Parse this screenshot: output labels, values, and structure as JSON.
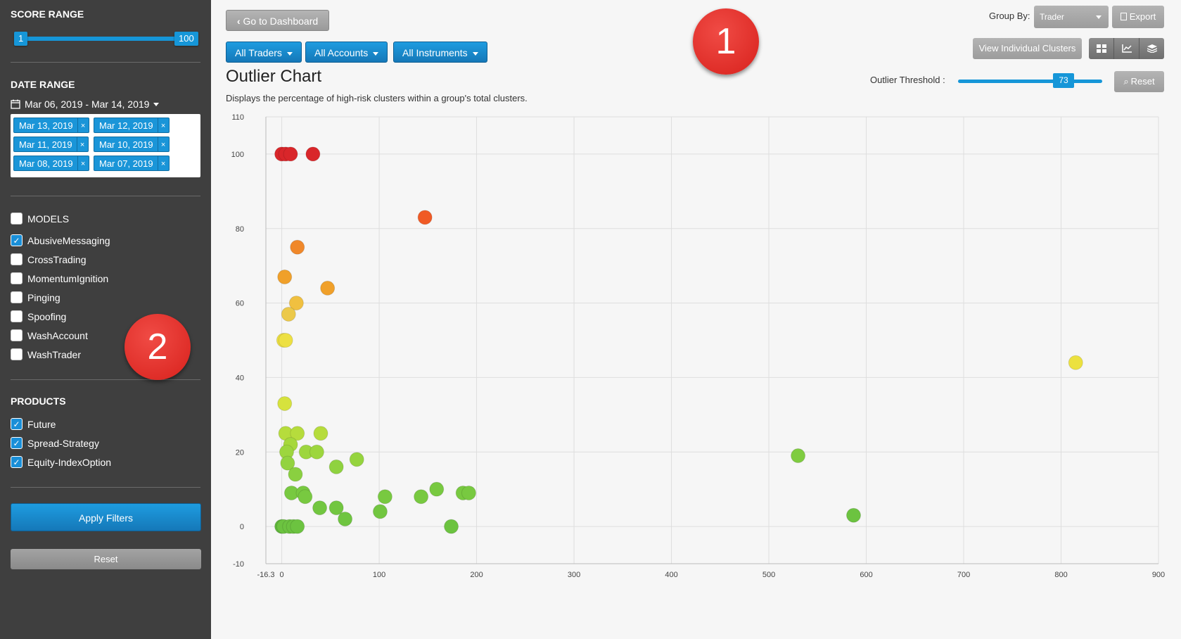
{
  "sidebar": {
    "score_range": {
      "title": "SCORE RANGE",
      "min_label": "1",
      "max_label": "100"
    },
    "date_range": {
      "title": "DATE RANGE",
      "picker_label": "Mar 06, 2019 - Mar 14, 2019",
      "tags": [
        "Mar 13, 2019",
        "Mar 12, 2019",
        "Mar 11, 2019",
        "Mar 10, 2019",
        "Mar 08, 2019",
        "Mar 07, 2019"
      ],
      "remove_glyph": "×"
    },
    "models": {
      "header": "MODELS",
      "items": [
        {
          "label": "AbusiveMessaging",
          "checked": true
        },
        {
          "label": "CrossTrading",
          "checked": false
        },
        {
          "label": "MomentumIgnition",
          "checked": false
        },
        {
          "label": "Pinging",
          "checked": false
        },
        {
          "label": "Spoofing",
          "checked": false
        },
        {
          "label": "WashAccount",
          "checked": false
        },
        {
          "label": "WashTrader",
          "checked": false
        }
      ]
    },
    "products": {
      "title": "PRODUCTS",
      "items": [
        {
          "label": "Future",
          "checked": true
        },
        {
          "label": "Spread-Strategy",
          "checked": true
        },
        {
          "label": "Equity-IndexOption",
          "checked": true
        }
      ]
    },
    "apply_label": "Apply Filters",
    "reset_label": "Reset"
  },
  "badges": {
    "one": "1",
    "two": "2"
  },
  "toolbar": {
    "dashboard_label": "Go to Dashboard",
    "filters": [
      "All Traders",
      "All Accounts",
      "All Instruments"
    ],
    "group_by_label": "Group By:",
    "group_by_value": "Trader",
    "export_label": "Export",
    "clusters_label": "View Individual Clusters",
    "threshold_label": "Outlier Threshold :",
    "threshold_value": "73",
    "threshold_reset_label": "Reset"
  },
  "page": {
    "title": "Outlier Chart",
    "subtitle": "Displays the percentage of high-risk clusters within a group's total clusters."
  },
  "colors": {
    "accent": "#1696d8",
    "sidebar_bg": "#3f3f3f"
  },
  "chart_data": {
    "type": "scatter",
    "title": "",
    "xlabel": "",
    "ylabel": "",
    "xlim": [
      -16.3,
      900
    ],
    "ylim": [
      -10,
      110
    ],
    "x_ticks": [
      -16.3,
      0,
      100,
      200,
      300,
      400,
      500,
      600,
      700,
      800,
      900
    ],
    "x_tick_labels": [
      "-16.3",
      "0",
      "100",
      "200",
      "300",
      "400",
      "500",
      "600",
      "700",
      "800",
      "900"
    ],
    "y_ticks": [
      -10,
      0,
      20,
      40,
      60,
      80,
      100,
      110
    ],
    "grid": true,
    "points": [
      {
        "x": 0,
        "y": 100,
        "color": "#d9262a"
      },
      {
        "x": 4,
        "y": 100,
        "color": "#d9262a"
      },
      {
        "x": 9,
        "y": 100,
        "color": "#d9262a"
      },
      {
        "x": 32,
        "y": 100,
        "color": "#d9262a"
      },
      {
        "x": 147,
        "y": 83,
        "color": "#f05a25"
      },
      {
        "x": 16,
        "y": 75,
        "color": "#f0882a"
      },
      {
        "x": 3,
        "y": 67,
        "color": "#f0a02a"
      },
      {
        "x": 47,
        "y": 64,
        "color": "#f0a02a"
      },
      {
        "x": 15,
        "y": 60,
        "color": "#f0c040"
      },
      {
        "x": 7,
        "y": 57,
        "color": "#ecc94a"
      },
      {
        "x": 2,
        "y": 50,
        "color": "#ede043"
      },
      {
        "x": 4,
        "y": 50,
        "color": "#ede043"
      },
      {
        "x": 815,
        "y": 44,
        "color": "#ece13f"
      },
      {
        "x": 3,
        "y": 33,
        "color": "#d6e23d"
      },
      {
        "x": 4,
        "y": 25,
        "color": "#b6dc3c"
      },
      {
        "x": 16,
        "y": 25,
        "color": "#b6dc3c"
      },
      {
        "x": 40,
        "y": 25,
        "color": "#b6dc3c"
      },
      {
        "x": 9,
        "y": 22,
        "color": "#a6d83c"
      },
      {
        "x": 5,
        "y": 20,
        "color": "#9dd63e"
      },
      {
        "x": 25,
        "y": 20,
        "color": "#9dd63e"
      },
      {
        "x": 36,
        "y": 20,
        "color": "#9dd63e"
      },
      {
        "x": 77,
        "y": 18,
        "color": "#95d43e"
      },
      {
        "x": 6,
        "y": 17,
        "color": "#93d33f"
      },
      {
        "x": 56,
        "y": 16,
        "color": "#8fd23f"
      },
      {
        "x": 14,
        "y": 14,
        "color": "#8ad040"
      },
      {
        "x": 530,
        "y": 19,
        "color": "#7fcc40"
      },
      {
        "x": 10,
        "y": 9,
        "color": "#78c940"
      },
      {
        "x": 22,
        "y": 9,
        "color": "#78c940"
      },
      {
        "x": 24,
        "y": 8,
        "color": "#78c940"
      },
      {
        "x": 106,
        "y": 8,
        "color": "#78c940"
      },
      {
        "x": 143,
        "y": 8,
        "color": "#78c940"
      },
      {
        "x": 159,
        "y": 10,
        "color": "#78c940"
      },
      {
        "x": 186,
        "y": 9,
        "color": "#78c940"
      },
      {
        "x": 192,
        "y": 9,
        "color": "#78c940"
      },
      {
        "x": 39,
        "y": 5,
        "color": "#72c640"
      },
      {
        "x": 56,
        "y": 5,
        "color": "#72c640"
      },
      {
        "x": 101,
        "y": 4,
        "color": "#72c640"
      },
      {
        "x": 65,
        "y": 2,
        "color": "#6fc540"
      },
      {
        "x": 587,
        "y": 3,
        "color": "#6cc340"
      },
      {
        "x": 174,
        "y": 0,
        "color": "#6cc340"
      },
      {
        "x": 0,
        "y": 0,
        "color": "#5fb83c"
      },
      {
        "x": 2,
        "y": 0,
        "color": "#6cc340"
      },
      {
        "x": 8,
        "y": 0,
        "color": "#6cc340"
      },
      {
        "x": 12,
        "y": 0,
        "color": "#6cc340"
      },
      {
        "x": 16,
        "y": 0,
        "color": "#6cc340"
      }
    ]
  }
}
